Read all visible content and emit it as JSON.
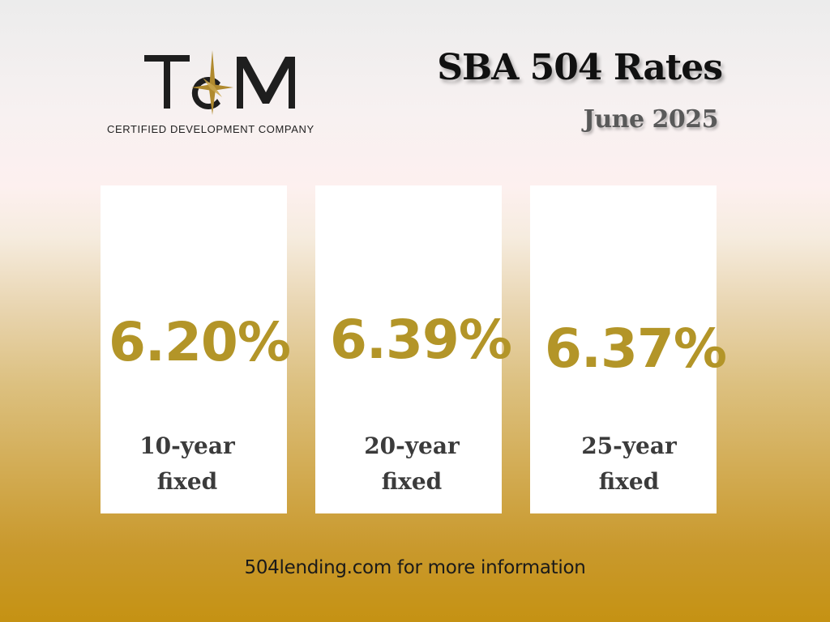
{
  "logo": {
    "tagline": "CERTIFIED DEVELOPMENT COMPANY",
    "colors": {
      "letters": "#1e1e1e",
      "star": "#b08a2e"
    }
  },
  "header": {
    "title": "SBA 504 Rates",
    "subtitle": "June 2025"
  },
  "rates": [
    {
      "rate": "6.20%",
      "term_line1": "10-year",
      "term_line2": "fixed"
    },
    {
      "rate": "6.39%",
      "term_line1": "20-year",
      "term_line2": "fixed"
    },
    {
      "rate": "6.37%",
      "term_line1": "25-year",
      "term_line2": "fixed"
    }
  ],
  "footer": {
    "text": "504lending.com for more information"
  },
  "colors": {
    "accent_gold": "#b39528",
    "background_bottom": "#c59213",
    "card": "#ffffff"
  }
}
